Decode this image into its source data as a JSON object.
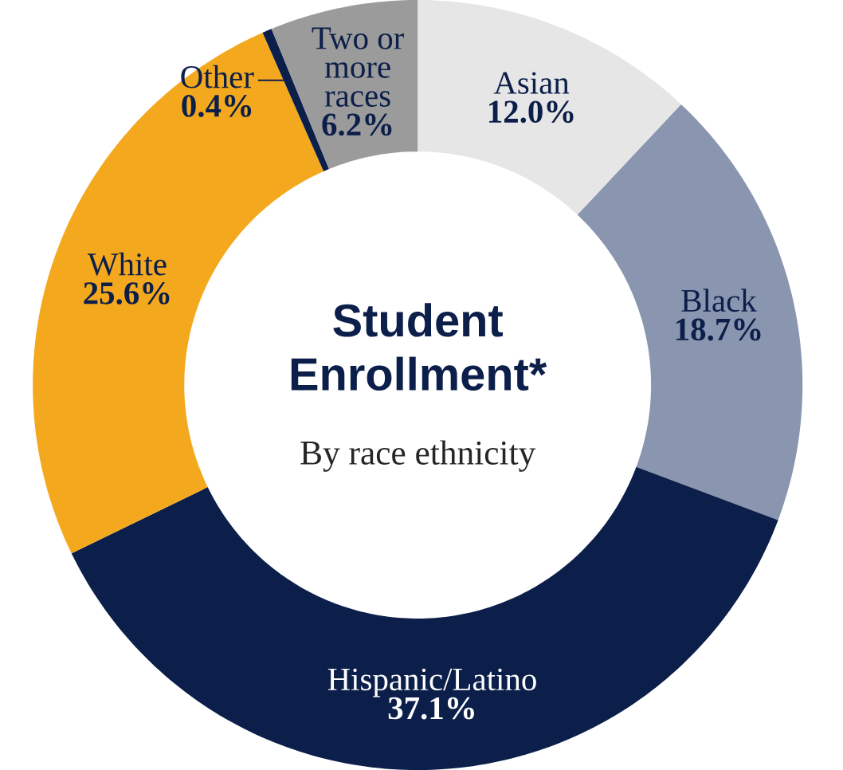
{
  "chart_data": {
    "type": "donut",
    "title": "Student Enrollment*",
    "subtitle": "By race ethnicity",
    "categories": [
      "Asian",
      "Black",
      "Hispanic/Latino",
      "White",
      "Other",
      "Two or more races"
    ],
    "values": [
      12.0,
      18.7,
      37.1,
      25.6,
      0.4,
      6.2
    ],
    "value_labels": [
      "12.0%",
      "18.7%",
      "37.1%",
      "25.6%",
      "0.4%",
      "6.2%"
    ],
    "colors": [
      "#e6e6e6",
      "#8a96b0",
      "#0c1f4a",
      "#f4a81d",
      "#0c1f4a",
      "#9b9b9b"
    ]
  }
}
